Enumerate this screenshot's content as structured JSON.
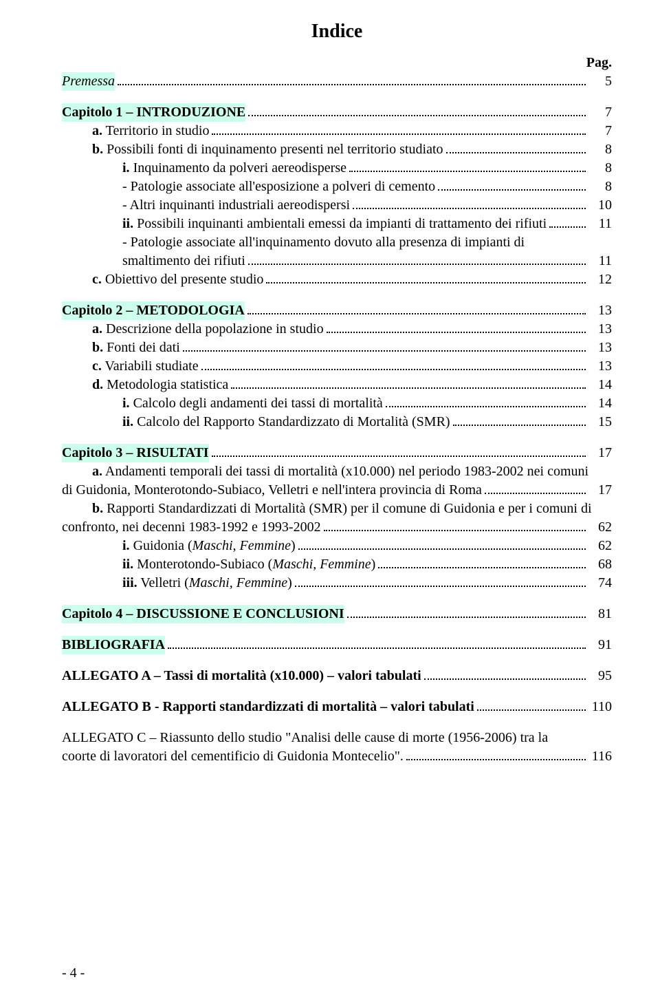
{
  "colors": {
    "highlight_bg": "#ccffec",
    "text": "#000000",
    "background": "#ffffff",
    "leader": "#000000"
  },
  "typography": {
    "font_family": "Times New Roman",
    "title_size_pt": 21,
    "body_size_pt": 15
  },
  "title": "Indice",
  "pag_label": "Pag.",
  "footer": "- 4 -",
  "entries": [
    {
      "type": "line",
      "indent": 0,
      "highlight": true,
      "italic": true,
      "label": "Premessa",
      "page": "5"
    },
    {
      "type": "gap"
    },
    {
      "type": "line",
      "indent": 0,
      "highlight": true,
      "bold": true,
      "label": "Capitolo 1 – INTRODUZIONE",
      "page": "7"
    },
    {
      "type": "line",
      "indent": 1,
      "prefix": "a.",
      "prefix_bold": true,
      "label": " Territorio in studio",
      "page": "7"
    },
    {
      "type": "line",
      "indent": 1,
      "prefix": "b.",
      "prefix_bold": true,
      "label": " Possibili fonti di inquinamento presenti nel territorio studiato",
      "page": "8"
    },
    {
      "type": "line",
      "indent": 2,
      "prefix": "i.",
      "prefix_bold": true,
      "label": " Inquinamento da polveri aereodisperse",
      "page": "8"
    },
    {
      "type": "line",
      "indent": 2,
      "label": "- Patologie associate all'esposizione a polveri di cemento",
      "page": "8"
    },
    {
      "type": "line",
      "indent": 2,
      "label": "- Altri inquinanti industriali aereodispersi",
      "page": "10"
    },
    {
      "type": "line",
      "indent": 2,
      "prefix": "ii.",
      "prefix_bold": true,
      "label": " Possibili inquinanti ambientali emessi da impianti di trattamento dei rifiuti",
      "page": "11"
    },
    {
      "type": "wrap",
      "indent": 2,
      "label_lines": [
        "- Patologie associate all'inquinamento dovuto alla presenza di impianti di",
        "smaltimento dei rifiuti"
      ],
      "page": "11"
    },
    {
      "type": "line",
      "indent": 1,
      "prefix": "c.",
      "prefix_bold": true,
      "label": " Obiettivo del presente studio",
      "page": "12"
    },
    {
      "type": "gap"
    },
    {
      "type": "line",
      "indent": 0,
      "highlight": true,
      "bold": true,
      "label": "Capitolo 2 – METODOLOGIA",
      "page": "13"
    },
    {
      "type": "line",
      "indent": 1,
      "prefix": "a.",
      "prefix_bold": true,
      "label": " Descrizione della popolazione in studio",
      "page": "13"
    },
    {
      "type": "line",
      "indent": 1,
      "prefix": "b.",
      "prefix_bold": true,
      "label": " Fonti dei dati",
      "page": "13"
    },
    {
      "type": "line",
      "indent": 1,
      "prefix": "c.",
      "prefix_bold": true,
      "label": " Variabili studiate",
      "page": "13"
    },
    {
      "type": "line",
      "indent": 1,
      "prefix": "d.",
      "prefix_bold": true,
      "label": " Metodologia statistica",
      "page": "14"
    },
    {
      "type": "line",
      "indent": 2,
      "prefix": "i.",
      "prefix_bold": true,
      "label": " Calcolo degli andamenti dei tassi di mortalità",
      "page": "14"
    },
    {
      "type": "line",
      "indent": 2,
      "prefix": "ii.",
      "prefix_bold": true,
      "label": " Calcolo del Rapporto Standardizzato di Mortalità (SMR)",
      "page": "15"
    },
    {
      "type": "gap"
    },
    {
      "type": "line",
      "indent": 0,
      "highlight": true,
      "bold": true,
      "label": "Capitolo 3 – RISULTATI",
      "page": "17"
    },
    {
      "type": "wrap",
      "indent": 1,
      "prefix": "a.",
      "prefix_bold": true,
      "label_lines": [
        " Andamenti temporali dei tassi di mortalità (x10.000) nel periodo 1983-2002 nei comuni",
        "di Guidonia, Monterotondo-Subiaco, Velletri e nell'intera provincia di Roma"
      ],
      "page": "17",
      "first_line_no_leader": true,
      "dedent_continuation": true
    },
    {
      "type": "wrap",
      "indent": 1,
      "prefix": "b.",
      "prefix_bold": true,
      "label_lines": [
        " Rapporti Standardizzati di Mortalità (SMR) per il comune di Guidonia e per i comuni di",
        "confronto, nei decenni 1983-1992 e 1993-2002"
      ],
      "page": "62",
      "first_line_no_leader": true,
      "dedent_continuation": true
    },
    {
      "type": "line",
      "indent": 2,
      "prefix": "i.",
      "prefix_bold": true,
      "label_parts": [
        " Guidonia (",
        {
          "italic": true,
          "text": "Maschi, Femmine"
        },
        ")"
      ],
      "page": "62"
    },
    {
      "type": "line",
      "indent": 2,
      "prefix": "ii.",
      "prefix_bold": true,
      "label_parts": [
        " Monterotondo-Subiaco (",
        {
          "italic": true,
          "text": "Maschi, Femmine"
        },
        ")"
      ],
      "page": "68"
    },
    {
      "type": "line",
      "indent": 2,
      "prefix": "iii.",
      "prefix_bold": true,
      "label_parts": [
        " Velletri (",
        {
          "italic": true,
          "text": "Maschi, Femmine"
        },
        ")"
      ],
      "page": "74"
    },
    {
      "type": "gap"
    },
    {
      "type": "line",
      "indent": 0,
      "highlight": true,
      "bold": true,
      "label": "Capitolo 4 – DISCUSSIONE E CONCLUSIONI",
      "page": "81"
    },
    {
      "type": "gap"
    },
    {
      "type": "line",
      "indent": 0,
      "highlight": true,
      "bold": true,
      "label": "BIBLIOGRAFIA",
      "page": "91"
    },
    {
      "type": "gap"
    },
    {
      "type": "line",
      "indent": 0,
      "bold": true,
      "label": "ALLEGATO A – Tassi di mortalità (x10.000) – valori tabulati",
      "page": "95"
    },
    {
      "type": "gap"
    },
    {
      "type": "line",
      "indent": 0,
      "bold": true,
      "label": "ALLEGATO B -  Rapporti standardizzati di mortalità – valori tabulati",
      "page": "110"
    },
    {
      "type": "gap"
    },
    {
      "type": "wrap",
      "indent": 0,
      "bold": true,
      "label_lines": [
        "ALLEGATO C – Riassunto dello studio \"Analisi delle cause di morte (1956-2006) tra la",
        "coorte di lavoratori del cementificio di Guidonia Montecelio\". "
      ],
      "page": "116",
      "first_line_no_leader": true
    }
  ]
}
